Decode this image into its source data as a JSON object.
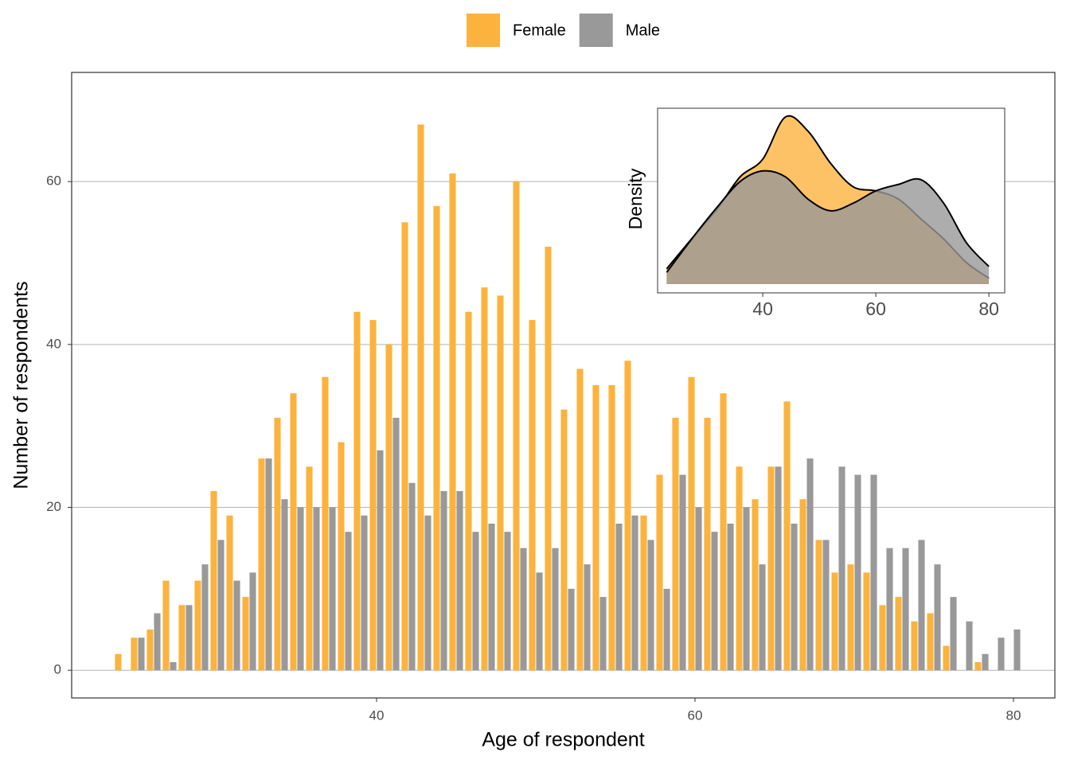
{
  "chart_data": [
    {
      "type": "bar",
      "xlabel": "Age of respondent",
      "ylabel": "Number of respondents",
      "x": [
        24,
        25,
        26,
        27,
        28,
        29,
        30,
        31,
        32,
        33,
        34,
        35,
        36,
        37,
        38,
        39,
        40,
        41,
        42,
        43,
        44,
        45,
        46,
        47,
        48,
        49,
        50,
        51,
        52,
        53,
        54,
        55,
        56,
        57,
        58,
        59,
        60,
        61,
        62,
        63,
        64,
        65,
        66,
        67,
        68,
        69,
        70,
        71,
        72,
        73,
        74,
        75,
        76,
        77,
        78,
        79,
        80
      ],
      "series": [
        {
          "name": "Female",
          "color": "#fbb33e",
          "values": [
            2,
            4,
            5,
            11,
            8,
            11,
            22,
            19,
            9,
            26,
            31,
            34,
            25,
            36,
            28,
            44,
            43,
            40,
            55,
            67,
            57,
            61,
            44,
            47,
            46,
            60,
            43,
            52,
            32,
            37,
            35,
            35,
            38,
            19,
            24,
            31,
            36,
            31,
            34,
            25,
            21,
            25,
            33,
            21,
            16,
            12,
            13,
            12,
            8,
            9,
            6,
            7,
            3,
            0,
            1,
            0,
            0
          ]
        },
        {
          "name": "Male",
          "color": "#999999",
          "values": [
            0,
            4,
            7,
            1,
            8,
            13,
            16,
            11,
            12,
            26,
            21,
            20,
            20,
            20,
            17,
            19,
            27,
            31,
            23,
            19,
            22,
            22,
            17,
            18,
            17,
            15,
            12,
            15,
            10,
            13,
            9,
            18,
            19,
            16,
            10,
            24,
            20,
            17,
            18,
            20,
            13,
            25,
            18,
            26,
            16,
            25,
            24,
            24,
            15,
            15,
            16,
            13,
            9,
            6,
            2,
            4,
            5
          ]
        }
      ],
      "xlim": [
        20.85,
        82.6
      ],
      "ylim": [
        -3.4,
        73.4
      ],
      "xticks": [
        40,
        60,
        80
      ],
      "yticks": [
        0,
        20,
        40,
        60
      ],
      "grid": true,
      "legend": "top"
    },
    {
      "type": "density",
      "ylabel": "Density",
      "x": [
        23,
        28,
        32,
        36,
        40,
        44,
        48,
        52,
        56,
        60,
        64,
        68,
        72,
        76,
        80
      ],
      "series": [
        {
          "color": "#fbb33e",
          "values": [
            0.0026,
            0.0084,
            0.0129,
            0.0183,
            0.0213,
            0.0285,
            0.0261,
            0.0206,
            0.0166,
            0.0159,
            0.0145,
            0.0111,
            0.0077,
            0.0037,
            0.001
          ]
        },
        {
          "color": "#999999",
          "values": [
            0.002,
            0.0084,
            0.0132,
            0.0175,
            0.0193,
            0.0183,
            0.0145,
            0.0125,
            0.0138,
            0.0159,
            0.017,
            0.0178,
            0.0138,
            0.0071,
            0.003
          ]
        }
      ],
      "xlim": [
        21.4,
        82.8
      ],
      "ylim": [
        -0.0015,
        0.03
      ],
      "xticks": [
        40,
        60,
        80
      ]
    }
  ]
}
